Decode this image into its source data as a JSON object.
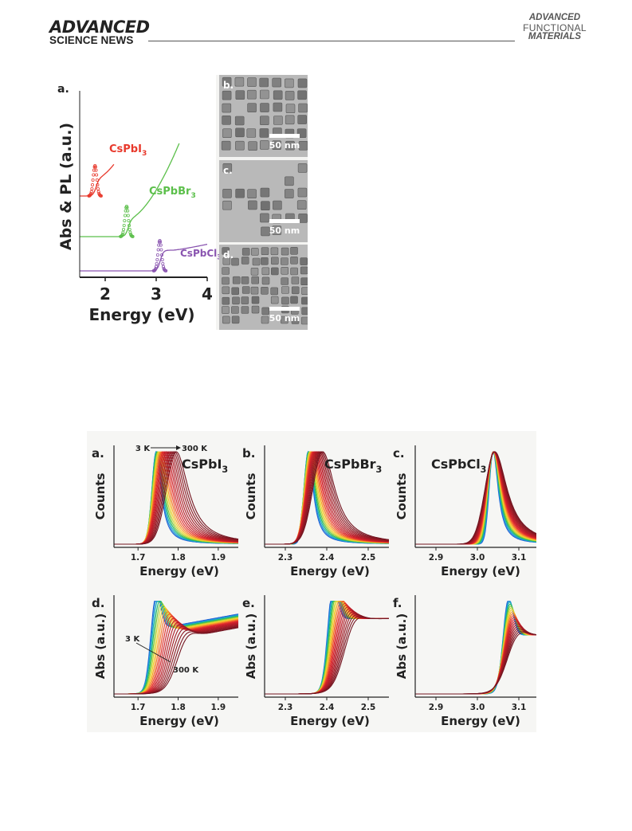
{
  "header": {
    "journal_line1": "ADVANCED",
    "journal_line2": "SCIENCE NEWS",
    "right_line1": "ADVANCED",
    "right_line2": "FUNCTIONAL",
    "right_line3": "MATERIALS"
  },
  "figure1": {
    "panel_a": {
      "label": "a.",
      "ylabel": "Abs & PL (a.u.)",
      "xlabel": "Energy (eV)",
      "xticks": [
        "2",
        "3",
        "4"
      ],
      "xlim": [
        1.5,
        4.0
      ],
      "series": [
        {
          "name": "CsPbI3",
          "color": "#e8392c",
          "pl_peak_ev": 1.8,
          "absorption_onset_ev": 1.82
        },
        {
          "name": "CsPbBr3",
          "color": "#5bbf4a",
          "pl_peak_ev": 2.42,
          "absorption_onset_ev": 2.45
        },
        {
          "name": "CsPbCl3",
          "color": "#8a55b0",
          "pl_peak_ev": 3.07,
          "absorption_onset_ev": 3.08
        }
      ]
    },
    "tem": [
      {
        "label": "b.",
        "scale": "50 nm"
      },
      {
        "label": "c.",
        "scale": "50 nm"
      },
      {
        "label": "d.",
        "scale": "50 nm"
      }
    ]
  },
  "figure2": {
    "temperature_start": "3 K",
    "temperature_end": "300 K",
    "temperature_series_count": 20,
    "panels": [
      {
        "label": "a.",
        "compound": "CsPbI3",
        "type": "PL",
        "ylabel": "Counts",
        "xlabel": "Energy (eV)",
        "xticks": [
          "1.7",
          "1.8",
          "1.9"
        ],
        "xlim": [
          1.64,
          1.95
        ],
        "peak_low_T_ev": 1.745,
        "peak_high_T_ev": 1.795
      },
      {
        "label": "b.",
        "compound": "CsPbBr3",
        "type": "PL",
        "ylabel": "Counts",
        "xlabel": "Energy (eV)",
        "xticks": [
          "2.3",
          "2.4",
          "2.5"
        ],
        "xlim": [
          2.25,
          2.55
        ],
        "peak_low_T_ev": 2.355,
        "peak_high_T_ev": 2.39
      },
      {
        "label": "c.",
        "compound": "CsPbCl3",
        "type": "PL",
        "ylabel": "Counts",
        "xlabel": "Energy (eV)",
        "xticks": [
          "2.9",
          "3.0",
          "3.1"
        ],
        "xlim": [
          2.85,
          3.15
        ],
        "peak_low_T_ev": 3.038,
        "peak_high_T_ev": 3.042
      },
      {
        "label": "d.",
        "compound": "CsPbI3",
        "type": "Abs",
        "ylabel": "Abs (a.u.)",
        "xlabel": "Energy (eV)",
        "xticks": [
          "1.7",
          "1.8",
          "1.9"
        ],
        "xlim": [
          1.64,
          1.95
        ],
        "edge_low_T_ev": 1.735,
        "edge_high_T_ev": 1.8
      },
      {
        "label": "e.",
        "compound": "CsPbBr3",
        "type": "Abs",
        "ylabel": "Abs (a.u.)",
        "xlabel": "Energy (eV)",
        "xticks": [
          "2.3",
          "2.4",
          "2.5"
        ],
        "xlim": [
          2.25,
          2.55
        ],
        "edge_low_T_ev": 2.405,
        "edge_high_T_ev": 2.445
      },
      {
        "label": "f.",
        "compound": "CsPbCl3",
        "type": "Abs",
        "ylabel": "Abs (a.u.)",
        "xlabel": "Energy (eV)",
        "xticks": [
          "2.9",
          "3.0",
          "3.1"
        ],
        "xlim": [
          2.85,
          3.15
        ],
        "edge_low_T_ev": 3.065,
        "edge_high_T_ev": 3.075
      }
    ]
  }
}
